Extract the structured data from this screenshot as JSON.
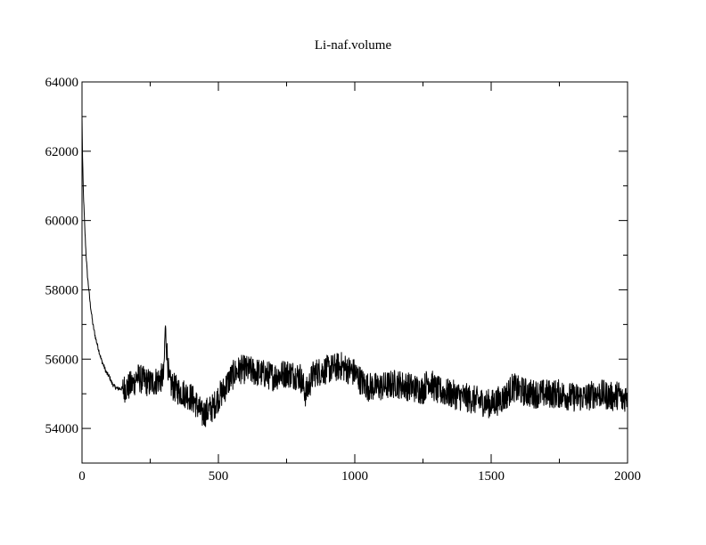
{
  "chart_data": {
    "type": "line",
    "title": "Li-naf.volume",
    "xlabel": "",
    "ylabel": "",
    "xlim": [
      0,
      2000
    ],
    "ylim": [
      53000,
      64000
    ],
    "x_ticks": [
      0,
      500,
      1000,
      1500,
      2000
    ],
    "y_ticks": [
      54000,
      56000,
      58000,
      60000,
      62000,
      64000
    ],
    "x_minor_step": 250,
    "y_minor_step": 1000,
    "grid": false,
    "legend": "none",
    "series": [
      {
        "color": "#000000",
        "x": [
          0,
          2,
          5,
          10,
          15,
          20,
          30,
          40,
          50,
          60,
          70,
          80,
          90,
          100,
          110,
          120,
          130,
          150,
          170,
          190,
          200,
          220,
          250,
          280,
          300,
          305,
          320,
          350,
          380,
          400,
          420,
          440,
          460,
          480,
          500,
          520,
          540,
          560,
          580,
          600,
          650,
          700,
          750,
          800,
          820,
          850,
          900,
          950,
          1000,
          1030,
          1050,
          1100,
          1150,
          1200,
          1250,
          1270,
          1300,
          1350,
          1400,
          1450,
          1500,
          1550,
          1580,
          1600,
          1650,
          1700,
          1750,
          1800,
          1850,
          1880,
          1900,
          1950,
          1970,
          1980,
          2000
        ],
        "y": [
          63000,
          61800,
          60800,
          59800,
          59000,
          58400,
          57600,
          57000,
          56600,
          56300,
          56000,
          55800,
          55600,
          55500,
          55300,
          55200,
          55150,
          55150,
          55200,
          55300,
          55500,
          55400,
          55300,
          55400,
          55500,
          56900,
          55300,
          55100,
          55000,
          54900,
          54700,
          54400,
          54500,
          54600,
          54900,
          55100,
          55400,
          55600,
          55700,
          55700,
          55600,
          55500,
          55600,
          55500,
          55000,
          55600,
          55700,
          55800,
          55600,
          55300,
          55200,
          55200,
          55300,
          55200,
          55100,
          55400,
          55100,
          55000,
          54900,
          54800,
          54700,
          54900,
          55200,
          55100,
          55000,
          55000,
          55000,
          54900,
          54900,
          55000,
          55000,
          54900,
          55000,
          54800,
          55000
        ]
      }
    ]
  }
}
